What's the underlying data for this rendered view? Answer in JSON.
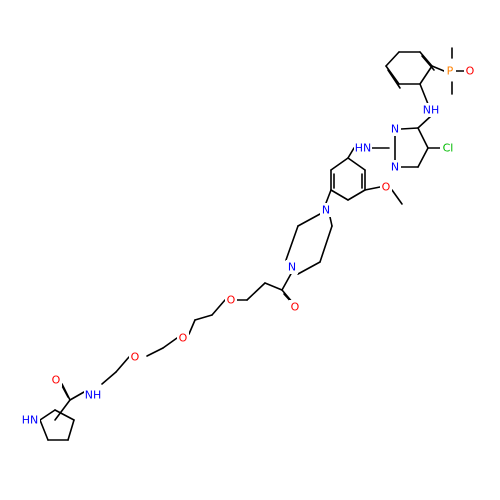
{
  "colors": {
    "carbon": "#000000",
    "nitrogen": "#0000ff",
    "oxygen": "#ff0000",
    "chlorine": "#00bb00",
    "phosphorus": "#ff8000",
    "background": "#ffffff"
  },
  "atoms": {
    "P": "P",
    "O_po": "O",
    "NH_aniline": "NH",
    "N3_pyr": "N",
    "N1_pyr": "N",
    "Cl": "Cl",
    "NH_link": "HN",
    "O_methoxy": "O",
    "N_pip_top": "N",
    "N_pip_bot": "N",
    "O_carbonyl": "O",
    "O_ether1": "O",
    "O_ether2": "O",
    "O_ether3": "O",
    "NH_amide": "NH",
    "O_amide": "O",
    "NH_pyrrolidine": "HN"
  }
}
